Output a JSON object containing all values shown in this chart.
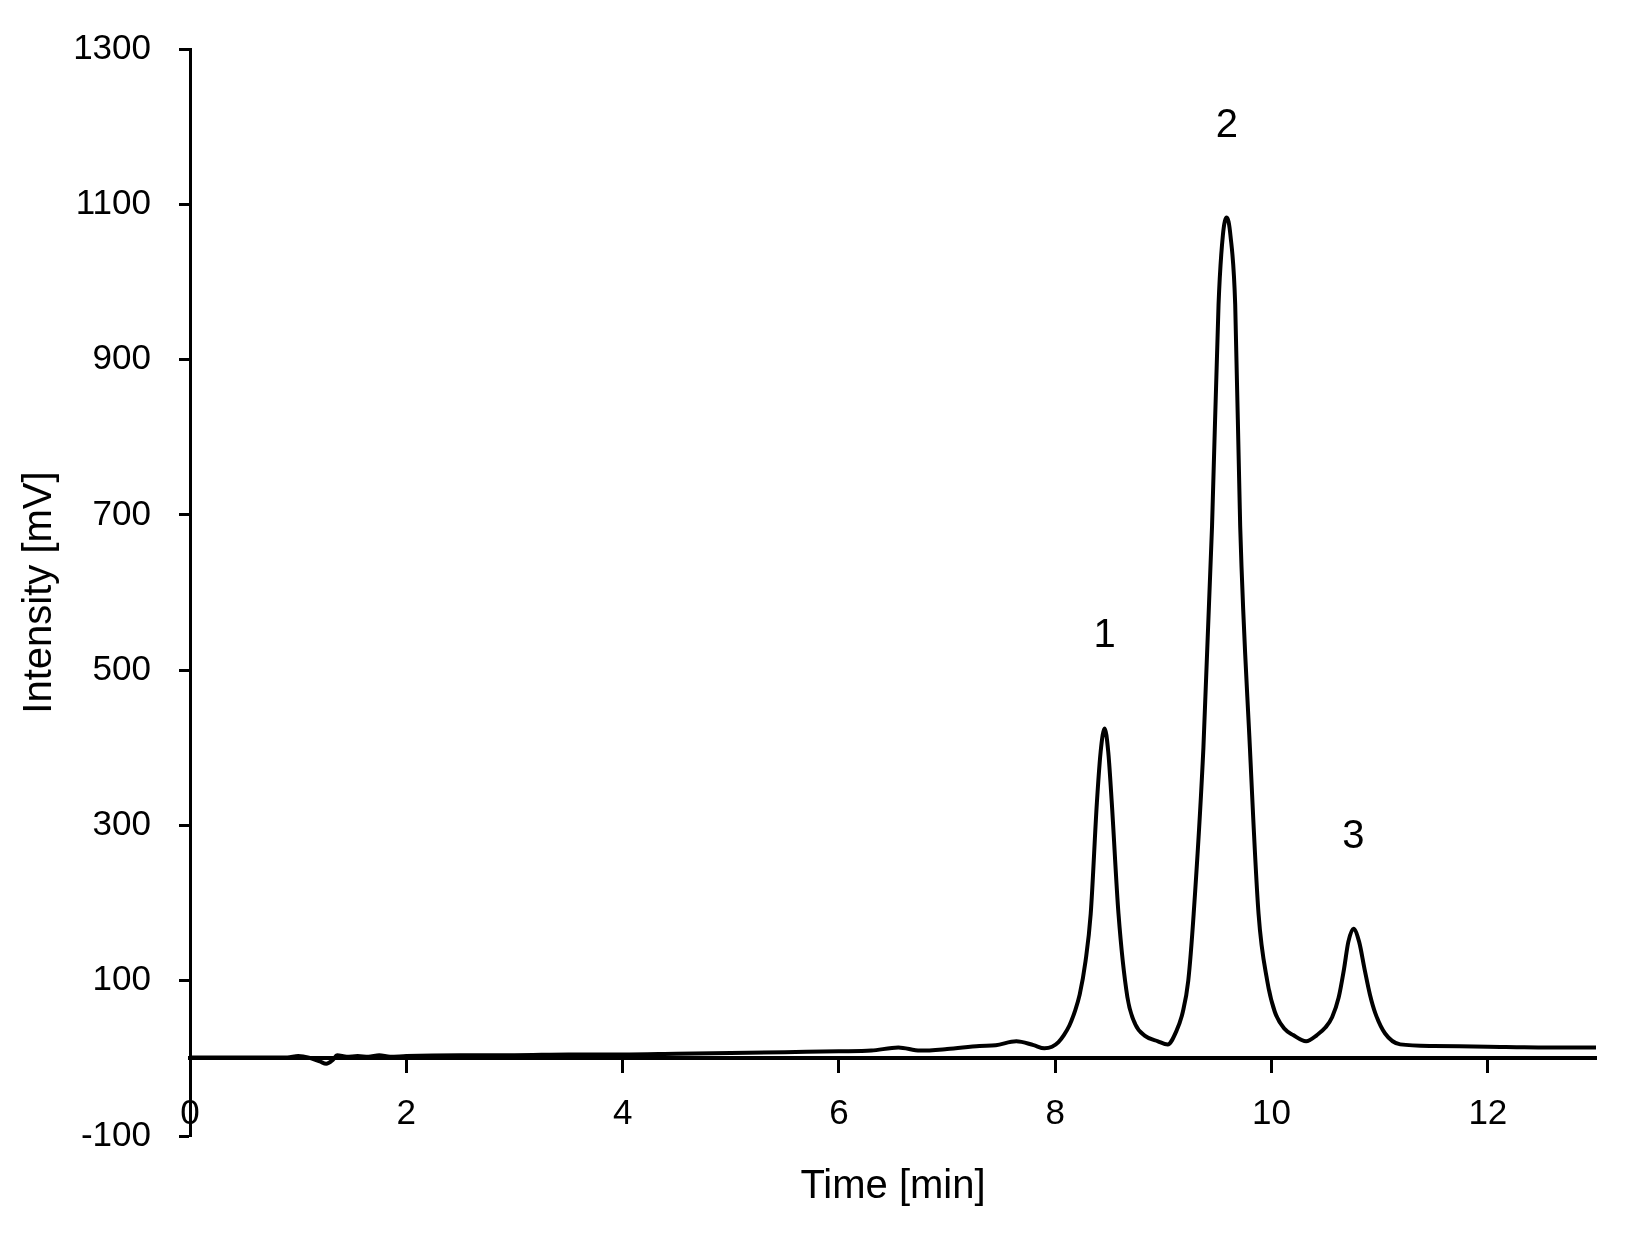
{
  "chart_data": {
    "type": "line",
    "xlabel": "Time [min]",
    "ylabel": "Intensity [mV]",
    "x": [
      0,
      0.5,
      0.9,
      1.0,
      1.1,
      1.2,
      1.26,
      1.32,
      1.36,
      1.45,
      1.55,
      1.65,
      1.75,
      1.85,
      2.0,
      2.5,
      3.0,
      3.5,
      4.0,
      4.5,
      5.0,
      5.5,
      6.0,
      6.3,
      6.55,
      6.75,
      7.0,
      7.3,
      7.45,
      7.64,
      7.8,
      7.9,
      7.97,
      8.03,
      8.08,
      8.13,
      8.18,
      8.226,
      8.28,
      8.328,
      8.385,
      8.42,
      8.457,
      8.49,
      8.523,
      8.585,
      8.667,
      8.74,
      8.83,
      8.95,
      9.04,
      9.12,
      9.18,
      9.23,
      9.28,
      9.37,
      9.45,
      9.51,
      9.55,
      9.586,
      9.62,
      9.664,
      9.71,
      9.8,
      9.88,
      9.96,
      10.03,
      10.12,
      10.2,
      10.32,
      10.42,
      10.5,
      10.56,
      10.62,
      10.67,
      10.71,
      10.757,
      10.81,
      10.86,
      10.91,
      10.96,
      11.05,
      11.19,
      11.5,
      12.0,
      12.5,
      13.0
    ],
    "series": [
      {
        "color": "#000000",
        "values": [
          1,
          1,
          1,
          3,
          1,
          -4,
          -7,
          -2,
          4,
          2,
          3,
          2,
          4,
          2,
          3,
          4,
          4,
          5,
          5,
          6,
          7,
          8,
          9,
          10,
          14,
          10,
          12,
          16,
          17,
          22,
          17,
          13,
          15,
          21,
          30,
          42,
          60,
          82,
          125,
          186,
          329,
          395,
          425,
          395,
          329,
          186,
          79,
          44,
          29,
          22,
          18,
          35,
          60,
          100,
          186,
          400,
          686,
          971,
          1060,
          1083,
          1060,
          971,
          686,
          400,
          186,
          100,
          60,
          38,
          30,
          22,
          30,
          40,
          53,
          78,
          115,
          150,
          167,
          150,
          115,
          82,
          58,
          32,
          18,
          16,
          15,
          14,
          14
        ]
      }
    ],
    "xlim": [
      0,
      13
    ],
    "ylim": [
      -100,
      1300
    ],
    "xticks": [
      0,
      2,
      4,
      6,
      8,
      10,
      12
    ],
    "yticks": [
      -100,
      100,
      300,
      500,
      700,
      900,
      1100,
      1300
    ],
    "annotations": [
      {
        "text": "1",
        "x": 8.457,
        "y": 425
      },
      {
        "text": "2",
        "x": 9.586,
        "y": 1083
      },
      {
        "text": "3",
        "x": 10.757,
        "y": 167
      }
    ],
    "marker": "none",
    "line_style": "solid",
    "legend": false,
    "grid": false
  }
}
